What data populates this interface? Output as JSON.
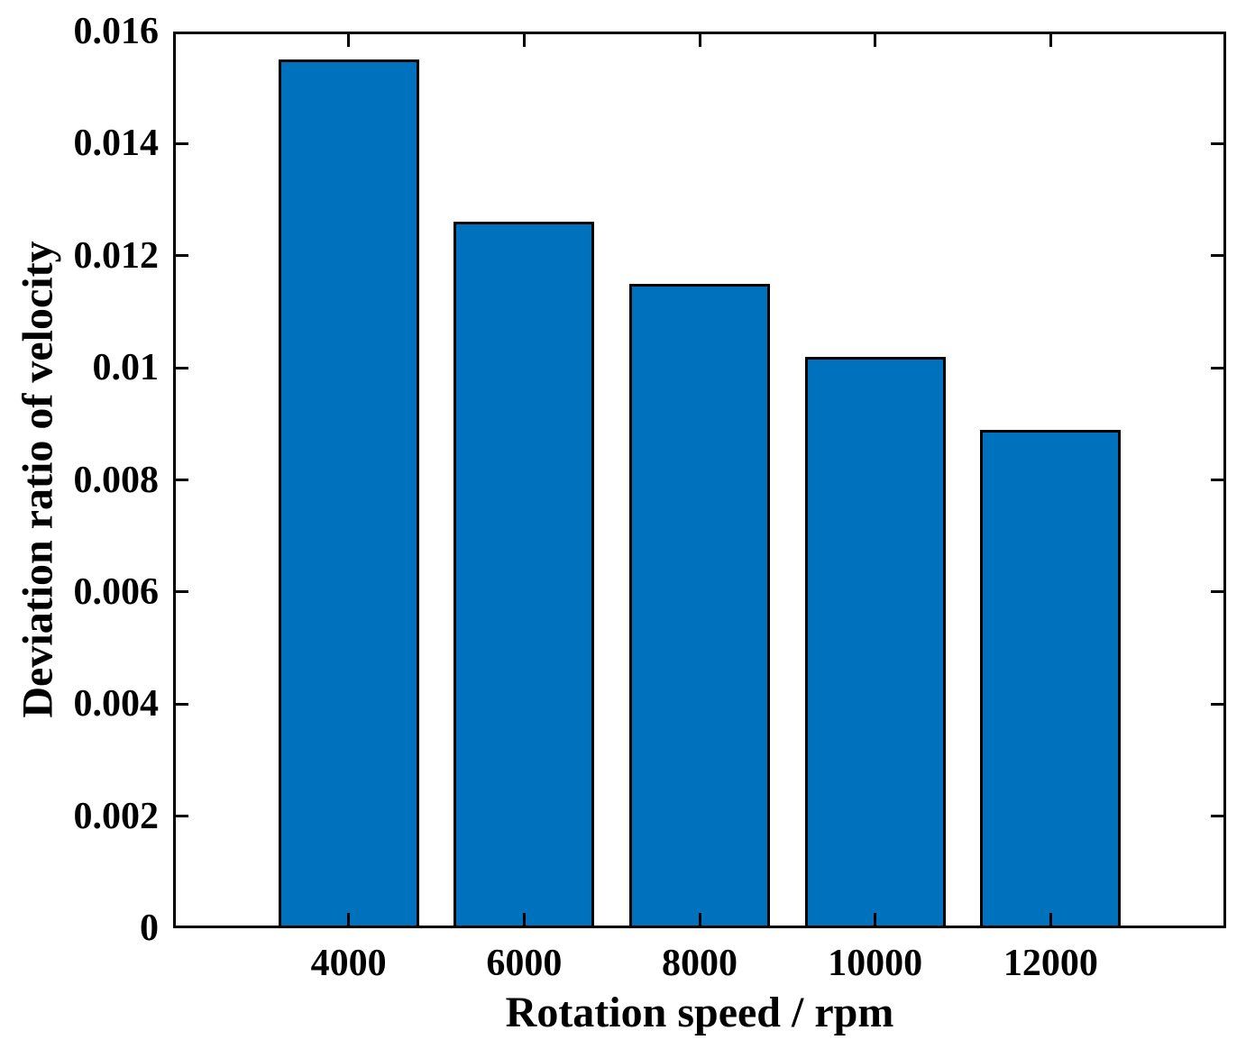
{
  "chart_data": {
    "type": "bar",
    "title": "",
    "xlabel": "Rotation speed / rpm",
    "ylabel": "Deviation ratio of velocity",
    "categories": [
      "4000",
      "6000",
      "8000",
      "10000",
      "12000"
    ],
    "x": [
      4000,
      6000,
      8000,
      10000,
      12000
    ],
    "values": [
      0.0155,
      0.0126,
      0.0115,
      0.0102,
      0.0089
    ],
    "xlim": [
      2000,
      14000
    ],
    "ylim": [
      0,
      0.016
    ],
    "yticks": [
      0,
      0.002,
      0.004,
      0.006,
      0.008,
      0.01,
      0.012,
      0.014,
      0.016
    ],
    "ytick_labels": [
      "0",
      "0.002",
      "0.004",
      "0.006",
      "0.008",
      "0.01",
      "0.012",
      "0.014",
      "0.016"
    ],
    "bar_width_ratio": 0.8,
    "bar_color": "#0072BD",
    "bar_edge_color": "#000000",
    "axis_color": "#000000",
    "background_color": "#ffffff",
    "grid": false,
    "box": true,
    "tick_direction": "in",
    "legend": null
  }
}
